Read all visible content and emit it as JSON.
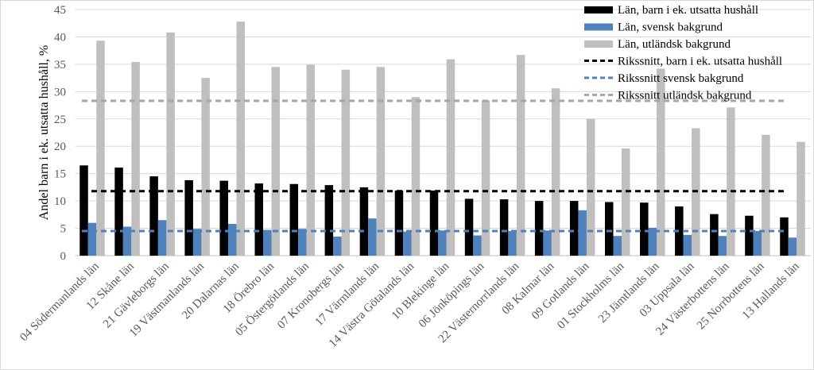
{
  "chart_data": {
    "type": "bar",
    "ylabel": "Andel barn i ek. utsatta hushåll, %",
    "xlabel": "",
    "ylim": [
      0,
      45
    ],
    "yticks": [
      0,
      5,
      10,
      15,
      20,
      25,
      30,
      35,
      40,
      45
    ],
    "grid": true,
    "legend_position": "top-right",
    "categories": [
      "04 Södermanlands län",
      "12 Skåne län",
      "21 Gävleborgs län",
      "19 Västmanlands län",
      "20 Dalarnas län",
      "18 Örebro län",
      "05 Östergötlands län",
      "07 Kronobergs län",
      "17 Värmlands län",
      "14 Västra Götalands län",
      "10 Blekinge län",
      "06 Jönköpings län",
      "22 Västernorrlands län",
      "08 Kalmar län",
      "09 Gotlands län",
      "01 Stockholms län",
      "23 Jämtlands län",
      "03 Uppsala län",
      "24 Västerbottens län",
      "25 Norrbottens län",
      "13 Hallands län"
    ],
    "series": [
      {
        "name": "Län, barn i ek. utsatta hushåll",
        "color": "#000000",
        "values": [
          16.5,
          16.1,
          14.5,
          13.8,
          13.7,
          13.2,
          13.1,
          12.9,
          12.5,
          11.9,
          11.9,
          10.4,
          10.3,
          10.0,
          10.0,
          9.8,
          9.7,
          9.0,
          7.6,
          7.3,
          7.0
        ]
      },
      {
        "name": "Län, svensk bakgrund",
        "color": "#4f81bd",
        "values": [
          6.0,
          5.3,
          6.5,
          4.9,
          5.8,
          4.7,
          4.9,
          3.5,
          6.8,
          4.4,
          4.6,
          3.7,
          4.5,
          4.6,
          8.3,
          3.6,
          5.1,
          3.8,
          3.6,
          4.5,
          3.3
        ]
      },
      {
        "name": "Län, utländsk bakgrund",
        "color": "#bfbfbf",
        "values": [
          39.3,
          35.4,
          40.8,
          32.5,
          42.8,
          34.5,
          34.9,
          34.0,
          34.5,
          29.0,
          35.9,
          28.4,
          36.7,
          30.6,
          25.0,
          19.6,
          34.2,
          23.3,
          27.1,
          22.1,
          20.8
        ]
      }
    ],
    "reference_lines": [
      {
        "name": "Rikssnitt, barn i ek. utsatta hushåll",
        "value": 11.8,
        "color": "#000000"
      },
      {
        "name": "Rikssnitt svensk bakgrund",
        "value": 4.5,
        "color": "#4f81bd"
      },
      {
        "name": "Rikssnitt utländsk bakgrund",
        "value": 28.3,
        "color": "#a6a6a6"
      }
    ]
  }
}
